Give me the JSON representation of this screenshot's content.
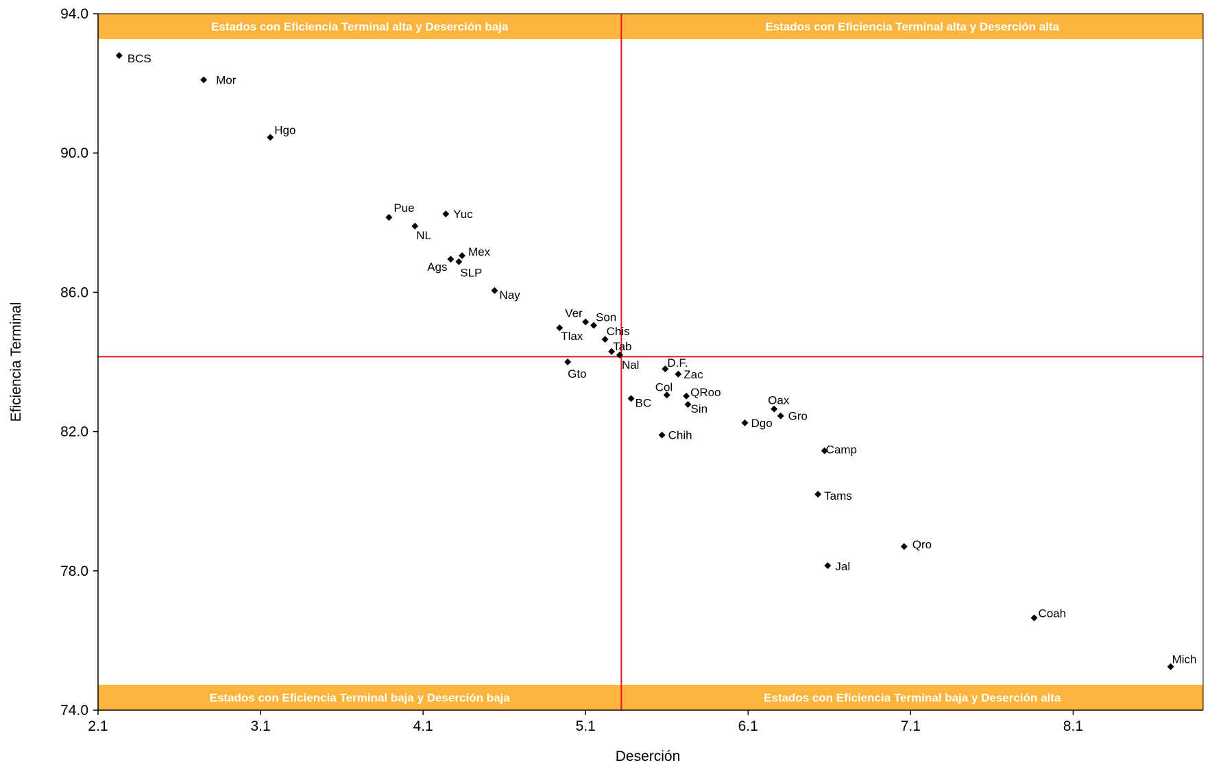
{
  "chart_data": {
    "type": "scatter",
    "xlabel": "Deserción",
    "ylabel": "Eficiencia Terminal",
    "xlim": [
      2.1,
      8.9
    ],
    "ylim": [
      74.0,
      94.0
    ],
    "x_ticks": [
      "2.1",
      "3.1",
      "4.1",
      "5.1",
      "6.1",
      "7.1",
      "8.1"
    ],
    "y_ticks": [
      "94.0",
      "90.0",
      "86.0",
      "82.0",
      "78.0",
      "74.0"
    ],
    "reference_lines": {
      "x": 5.32,
      "y": 84.15
    },
    "quadrant_labels": {
      "top_left": "Estados con Eficiencia Terminal alta y Deserción baja",
      "top_right": "Estados con Eficiencia Terminal alta y Deserción alta",
      "bottom_left": "Estados con Eficiencia Terminal baja y Deserción baja",
      "bottom_right": "Estados con Eficiencia Terminal baja y Deserción alta"
    },
    "colors": {
      "banner": "#FBB43C",
      "reference_line": "#E8141C",
      "marker": "#000000"
    },
    "points": [
      {
        "label": "BCS",
        "x": 2.23,
        "y": 92.8
      },
      {
        "label": "Mor",
        "x": 2.75,
        "y": 92.1
      },
      {
        "label": "Hgo",
        "x": 3.16,
        "y": 90.45
      },
      {
        "label": "Pue",
        "x": 3.89,
        "y": 88.15
      },
      {
        "label": "NL",
        "x": 4.05,
        "y": 87.9
      },
      {
        "label": "Yuc",
        "x": 4.24,
        "y": 88.25
      },
      {
        "label": "Ags",
        "x": 4.27,
        "y": 86.95
      },
      {
        "label": "Mex",
        "x": 4.34,
        "y": 87.05
      },
      {
        "label": "SLP",
        "x": 4.32,
        "y": 86.88
      },
      {
        "label": "Nay",
        "x": 4.54,
        "y": 86.05
      },
      {
        "label": "Tlax",
        "x": 4.94,
        "y": 84.98
      },
      {
        "label": "Ver",
        "x": 5.1,
        "y": 85.15
      },
      {
        "label": "Son",
        "x": 5.15,
        "y": 85.05
      },
      {
        "label": "Chis",
        "x": 5.22,
        "y": 84.65
      },
      {
        "label": "Tab",
        "x": 5.26,
        "y": 84.3
      },
      {
        "label": "Nal",
        "x": 5.31,
        "y": 84.2
      },
      {
        "label": "Gto",
        "x": 4.99,
        "y": 84.0
      },
      {
        "label": "D.F.",
        "x": 5.59,
        "y": 83.8
      },
      {
        "label": "Zac",
        "x": 5.67,
        "y": 83.65
      },
      {
        "label": "BC",
        "x": 5.38,
        "y": 82.95
      },
      {
        "label": "Col",
        "x": 5.6,
        "y": 83.05
      },
      {
        "label": "QRoo",
        "x": 5.72,
        "y": 83.02
      },
      {
        "label": "Sin",
        "x": 5.73,
        "y": 82.78
      },
      {
        "label": "Dgo",
        "x": 6.08,
        "y": 82.25
      },
      {
        "label": "Oax",
        "x": 6.26,
        "y": 82.65
      },
      {
        "label": "Gro",
        "x": 6.3,
        "y": 82.45
      },
      {
        "label": "Chih",
        "x": 5.57,
        "y": 81.9
      },
      {
        "label": "Camp",
        "x": 6.57,
        "y": 81.45
      },
      {
        "label": "Tams",
        "x": 6.53,
        "y": 80.2
      },
      {
        "label": "Qro",
        "x": 7.06,
        "y": 78.7
      },
      {
        "label": "Jal",
        "x": 6.59,
        "y": 78.15
      },
      {
        "label": "Coah",
        "x": 7.86,
        "y": 76.65
      },
      {
        "label": "Mich",
        "x": 8.7,
        "y": 75.25
      }
    ]
  }
}
